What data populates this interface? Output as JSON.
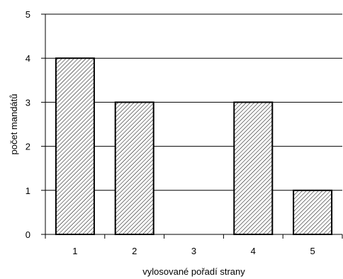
{
  "chart_data": {
    "type": "bar",
    "categories": [
      "1",
      "2",
      "3",
      "4",
      "5"
    ],
    "values": [
      4,
      3,
      0,
      3,
      1
    ],
    "xlabel": "vylosované pořadí strany",
    "ylabel": "počet mandátů",
    "ylim": [
      0,
      5
    ],
    "yticks": [
      "0",
      "1",
      "2",
      "3",
      "4",
      "5"
    ],
    "grid": true,
    "legend": "none",
    "bar_fill": "diagonal-hatch",
    "colors": {
      "background": "#ffffff",
      "bar_fill": "#ffffff",
      "hatch": "#000000",
      "bar_border": "#000000",
      "grid": "#000000",
      "axis": "#000000",
      "text": "#000000"
    }
  }
}
